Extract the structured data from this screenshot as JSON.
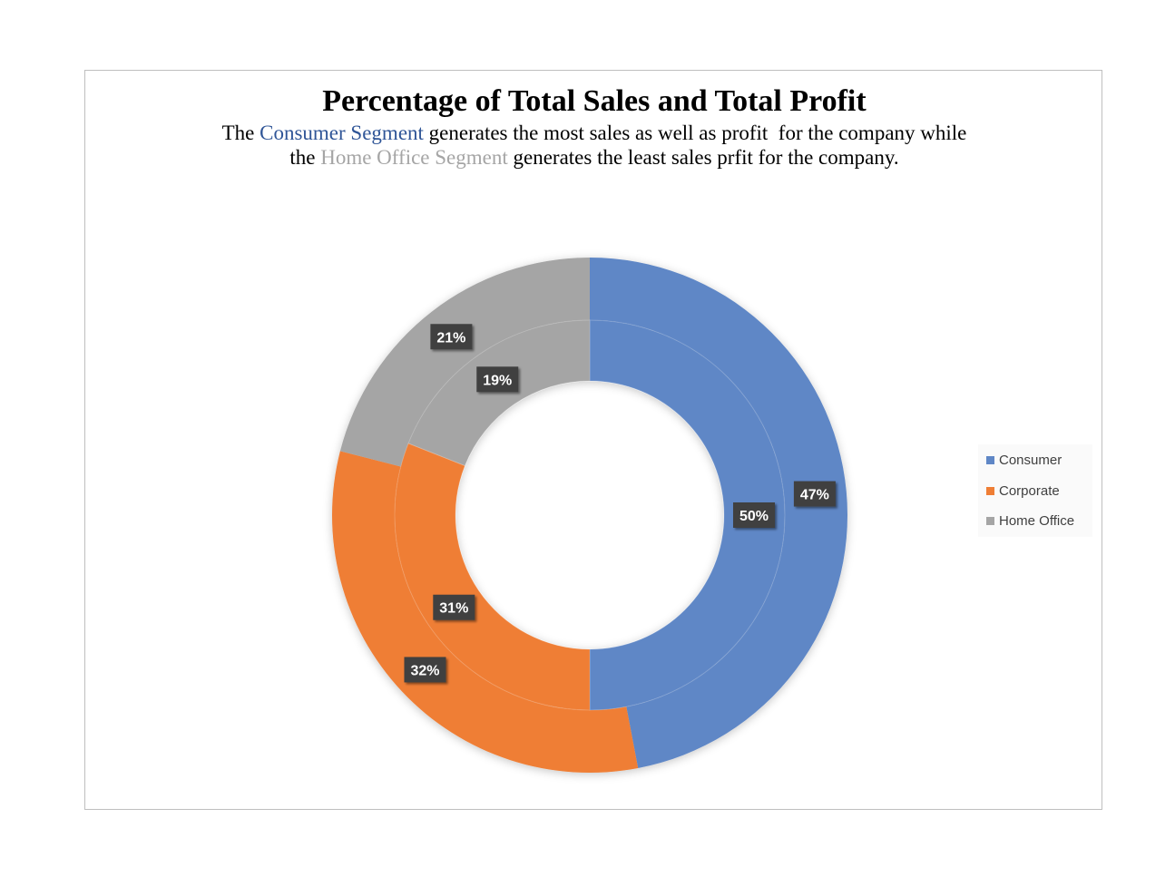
{
  "chart_data": {
    "type": "pie",
    "variant": "donut",
    "title": "Percentage of Total Sales and Total Profit",
    "subtitle": {
      "line1": {
        "prefix": "The ",
        "highlight": "Consumer Segment",
        "suffix": " generates the most sales as well as profit  for the company while"
      },
      "line2": {
        "prefix": "the ",
        "highlight": "Home Office Segment",
        "suffix": " generates the least sales prfit for the company."
      }
    },
    "categories": [
      "Consumer",
      "Corporate",
      "Home Office"
    ],
    "colors": [
      "#5f87c6",
      "#ef7e35",
      "#a5a5a5"
    ],
    "rings": [
      {
        "ring": "outer",
        "values": [
          47,
          32,
          21
        ],
        "labels": [
          "47%",
          "32%",
          "21%"
        ]
      },
      {
        "ring": "inner",
        "values": [
          50,
          31,
          19
        ],
        "labels": [
          "50%",
          "31%",
          "19%"
        ]
      }
    ],
    "legend": {
      "position": "right",
      "items": [
        "Consumer",
        "Corporate",
        "Home Office"
      ]
    }
  }
}
